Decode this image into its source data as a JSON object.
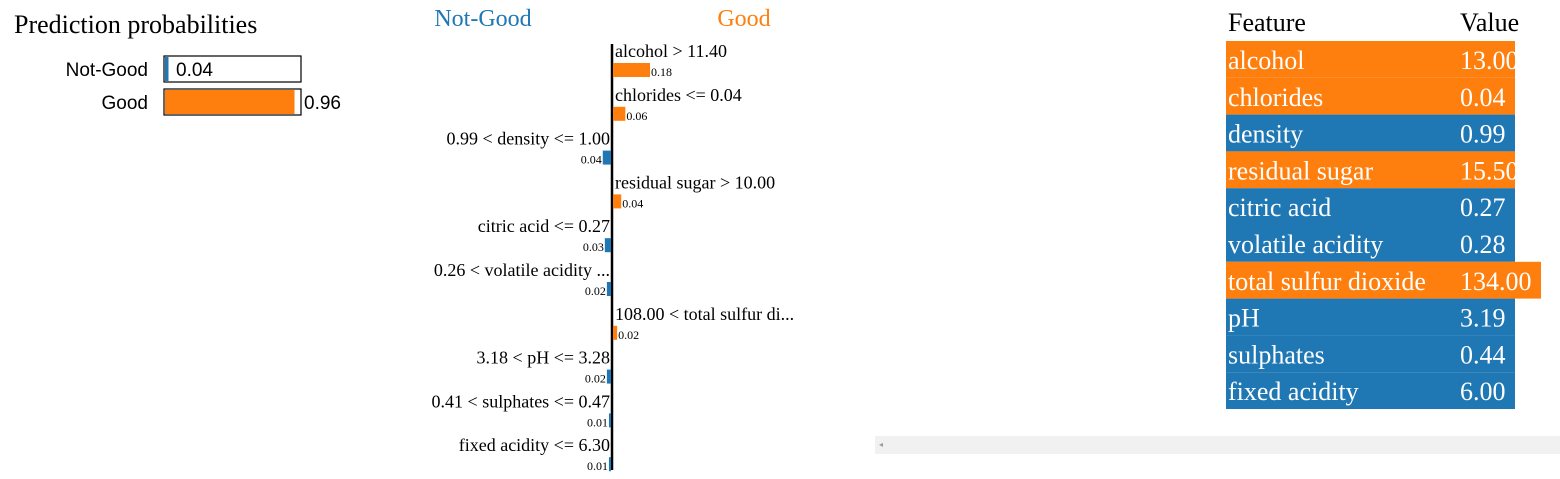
{
  "colors": {
    "negative": "#1f77b4",
    "positive": "#ff7f0e",
    "text": "#000000",
    "table_text": "#ffffff"
  },
  "chart_data": [
    {
      "type": "bar",
      "title": "Prediction probabilities",
      "orientation": "horizontal",
      "categories": [
        "Not-Good",
        "Good"
      ],
      "values": [
        0.04,
        0.96
      ],
      "value_labels": [
        "0.04",
        "0.96"
      ],
      "xlim": [
        0,
        1
      ],
      "bar_colors": [
        "#1f77b4",
        "#ff7f0e"
      ]
    },
    {
      "type": "bar",
      "orientation": "horizontal-diverging",
      "class_labels": {
        "negative": "Not-Good",
        "positive": "Good"
      },
      "features": [
        {
          "label": "alcohol > 11.40",
          "value": 0.18,
          "value_label": "0.18",
          "side": "positive"
        },
        {
          "label": "chlorides <= 0.04",
          "value": 0.06,
          "value_label": "0.06",
          "side": "positive"
        },
        {
          "label": "0.99 < density <= 1.00",
          "value": 0.04,
          "value_label": "0.04",
          "side": "negative"
        },
        {
          "label": "residual sugar > 10.00",
          "value": 0.04,
          "value_label": "0.04",
          "side": "positive"
        },
        {
          "label": "citric acid <= 0.27",
          "value": 0.03,
          "value_label": "0.03",
          "side": "negative"
        },
        {
          "label": "0.26 < volatile acidity ...",
          "value": 0.02,
          "value_label": "0.02",
          "side": "negative"
        },
        {
          "label": "108.00 < total sulfur di...",
          "value": 0.02,
          "value_label": "0.02",
          "side": "positive"
        },
        {
          "label": "3.18 < pH <= 3.28",
          "value": 0.02,
          "value_label": "0.02",
          "side": "negative"
        },
        {
          "label": "0.41 < sulphates <= 0.47",
          "value": 0.01,
          "value_label": "0.01",
          "side": "negative"
        },
        {
          "label": "fixed acidity <= 6.30",
          "value": 0.01,
          "value_label": "0.01",
          "side": "negative"
        }
      ]
    },
    {
      "type": "table",
      "columns": [
        "Feature",
        "Value"
      ],
      "rows": [
        {
          "feature": "alcohol",
          "value": "13.00",
          "side": "positive"
        },
        {
          "feature": "chlorides",
          "value": "0.04",
          "side": "positive"
        },
        {
          "feature": "density",
          "value": "0.99",
          "side": "negative"
        },
        {
          "feature": "residual sugar",
          "value": "15.50",
          "side": "positive"
        },
        {
          "feature": "citric acid",
          "value": "0.27",
          "side": "negative"
        },
        {
          "feature": "volatile acidity",
          "value": "0.28",
          "side": "negative"
        },
        {
          "feature": "total sulfur dioxide",
          "value": "134.00",
          "side": "positive"
        },
        {
          "feature": "pH",
          "value": "3.19",
          "side": "negative"
        },
        {
          "feature": "sulphates",
          "value": "0.44",
          "side": "negative"
        },
        {
          "feature": "fixed acidity",
          "value": "6.00",
          "side": "negative"
        }
      ]
    }
  ],
  "scrollbar": {
    "arrow_icon": "scroll-left-arrow-icon"
  }
}
